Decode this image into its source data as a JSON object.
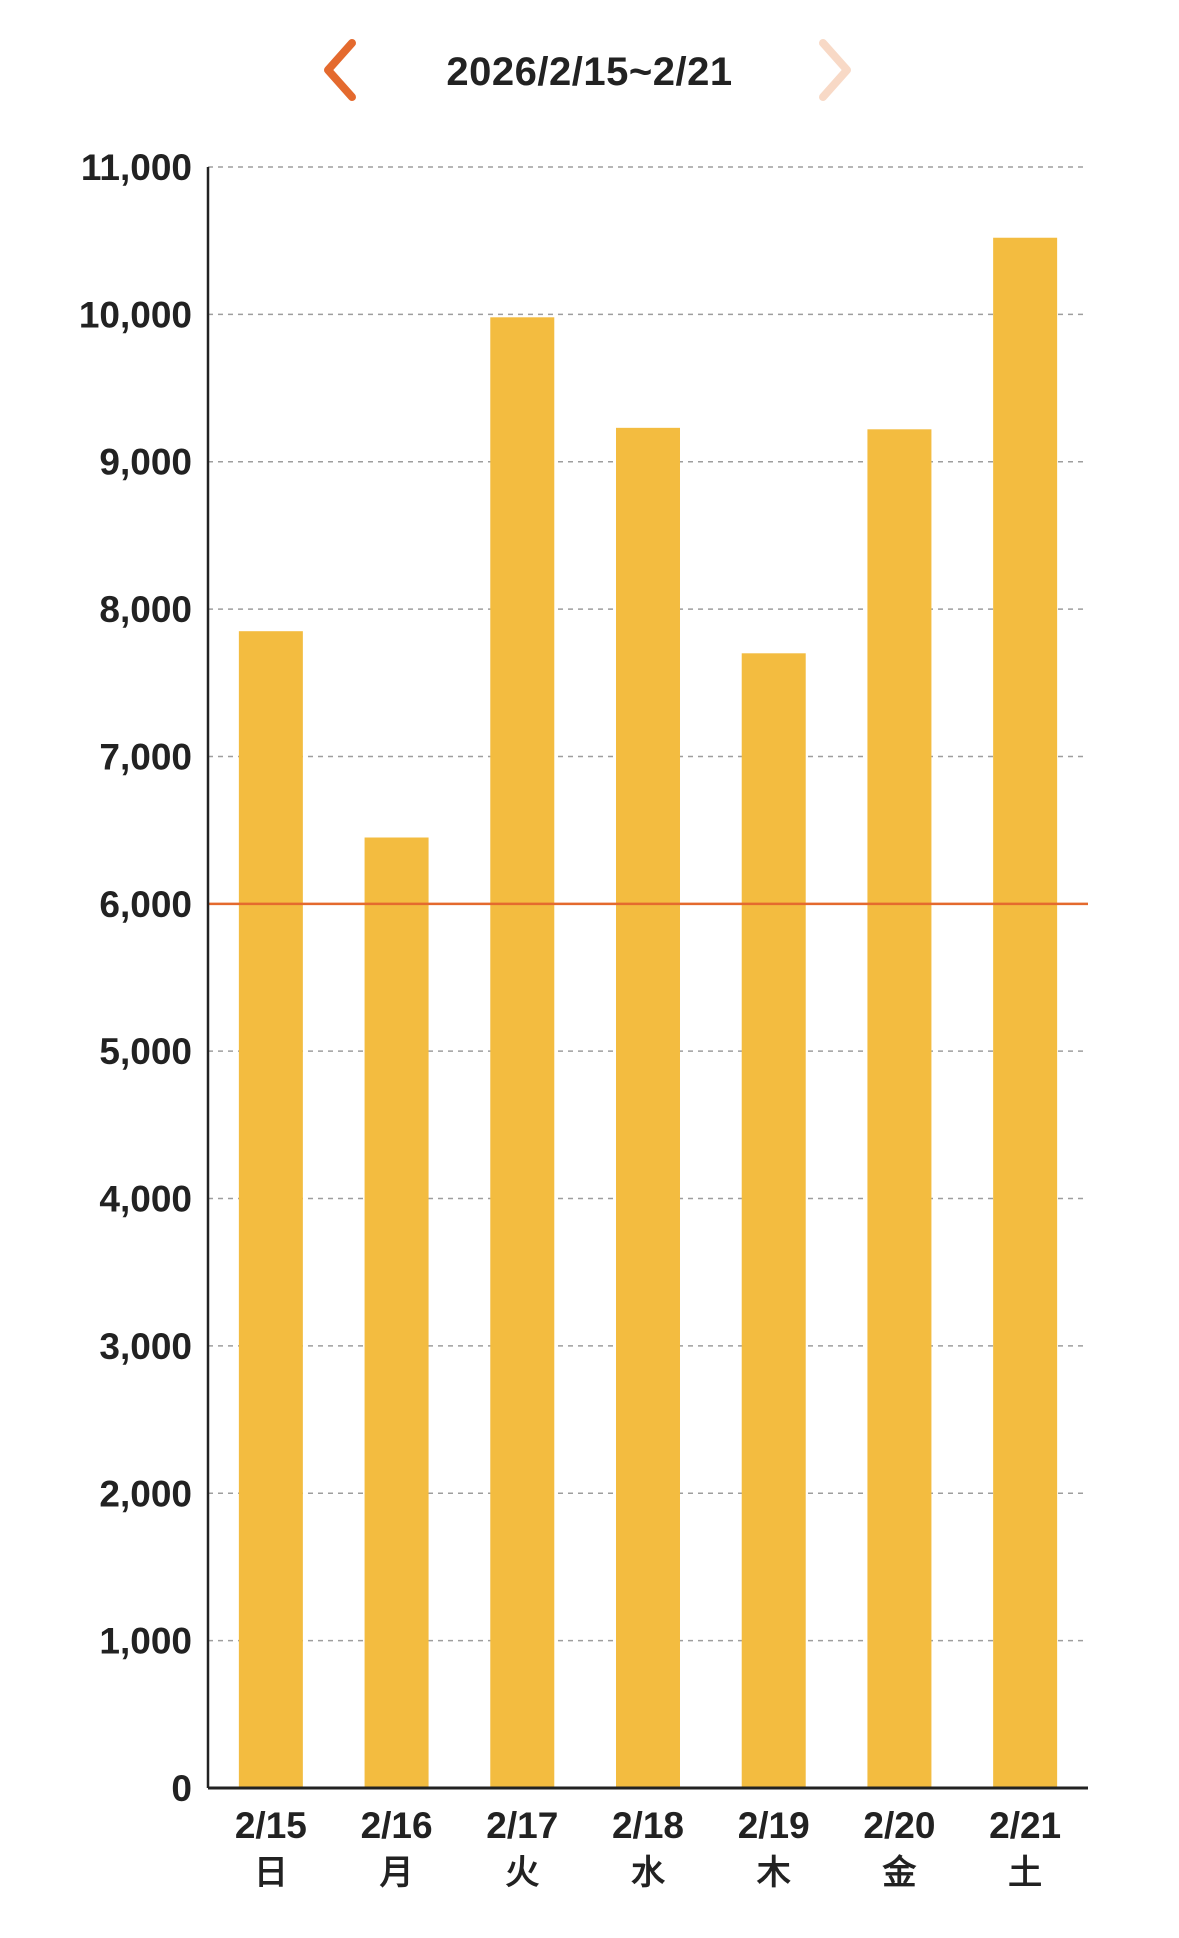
{
  "header": {
    "range_label": "2026/2/15~2/21",
    "prev_icon": "chevron-left-icon",
    "next_icon": "chevron-right-icon",
    "prev_color": "#E46A2E",
    "next_color": "#F8D9C6"
  },
  "colors": {
    "bar": "#F3BC40",
    "target_line": "#E46A2E",
    "axis": "#222222",
    "grid": "#9E9E9E"
  },
  "chart_data": {
    "type": "bar",
    "categories": [
      "2/15",
      "2/16",
      "2/17",
      "2/18",
      "2/19",
      "2/20",
      "2/21"
    ],
    "weekdays": [
      "日",
      "月",
      "火",
      "水",
      "木",
      "金",
      "土"
    ],
    "values": [
      7850,
      6450,
      9980,
      9230,
      7700,
      9220,
      10520
    ],
    "target": 6000,
    "ylim": [
      0,
      11000
    ],
    "yticks": [
      0,
      1000,
      2000,
      3000,
      4000,
      5000,
      6000,
      7000,
      8000,
      9000,
      10000,
      11000
    ],
    "ytick_labels": [
      "0",
      "1,000",
      "2,000",
      "3,000",
      "4,000",
      "5,000",
      "6,000",
      "7,000",
      "8,000",
      "9,000",
      "10,000",
      "11,000"
    ],
    "grid": true,
    "title": "",
    "xlabel": "",
    "ylabel": ""
  }
}
